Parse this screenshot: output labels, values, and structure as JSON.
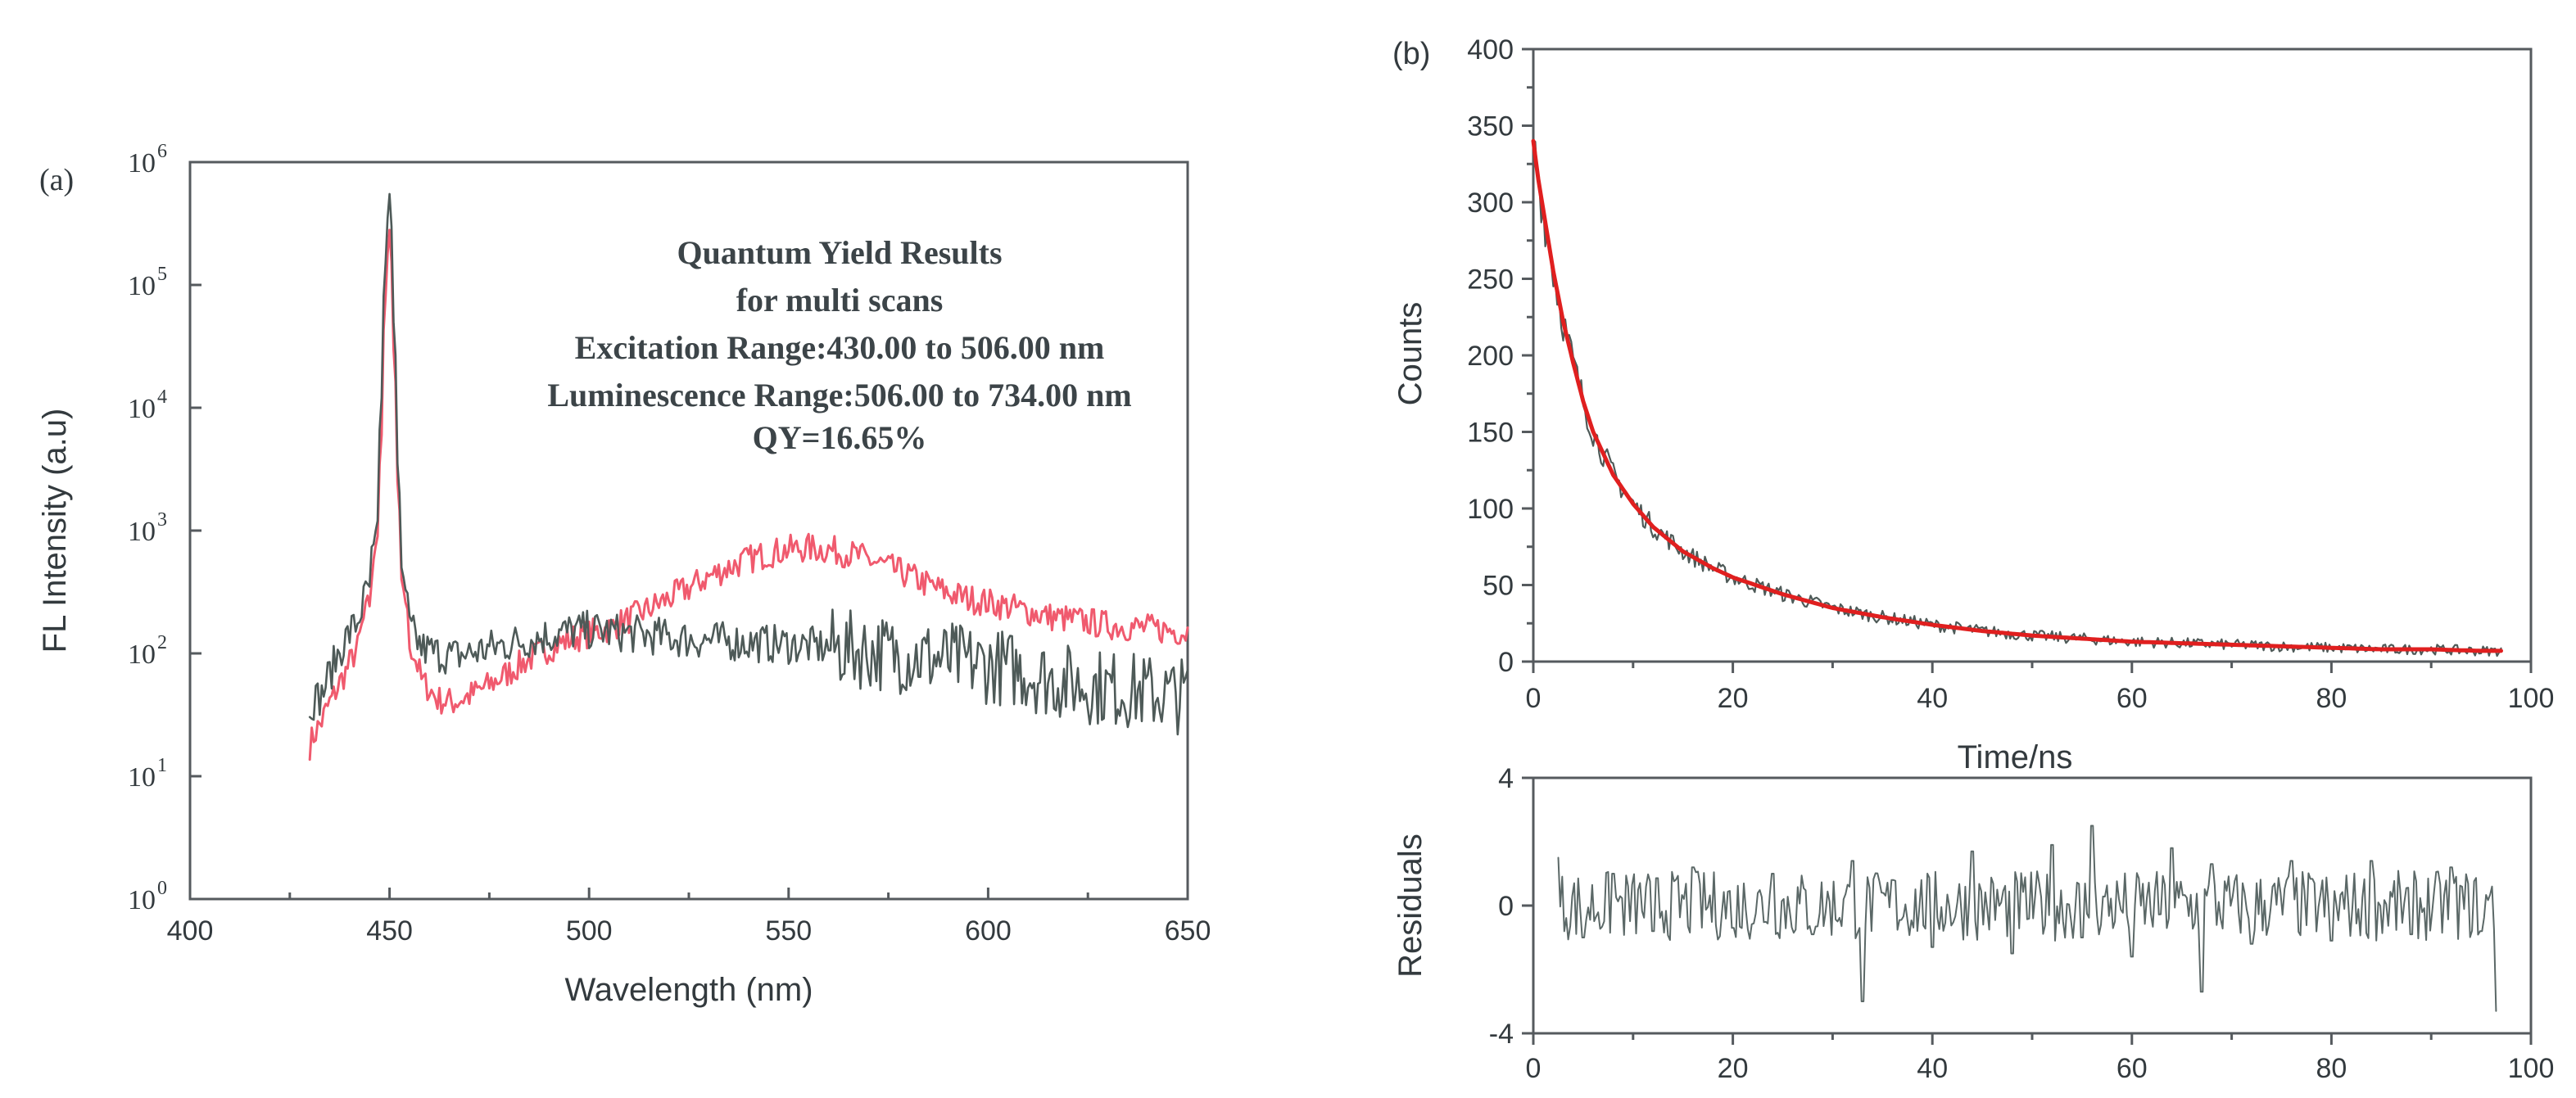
{
  "colors": {
    "sample_trace": "#f05a6e",
    "reference_trace": "#4e5a58",
    "fit_curve": "#e01f1f",
    "decay_data": "#4e5a58",
    "residual_trace": "#5b6867",
    "axis": "#555a5e",
    "text": "#333a3e"
  },
  "chart_data": [
    {
      "panel_label": "(a)",
      "type": "line",
      "title": "",
      "xlabel": "Wavelength (nm)",
      "ylabel": "FL Intensity (a.u)",
      "xlim": [
        400,
        650
      ],
      "ylim": [
        1,
        1000000
      ],
      "yscale": "log",
      "x_ticks": [
        "400",
        "450",
        "500",
        "550",
        "600",
        "650"
      ],
      "y_ticks": [
        {
          "base": "10",
          "exp": "0"
        },
        {
          "base": "10",
          "exp": "1"
        },
        {
          "base": "10",
          "exp": "2"
        },
        {
          "base": "10",
          "exp": "3"
        },
        {
          "base": "10",
          "exp": "4"
        },
        {
          "base": "10",
          "exp": "5"
        },
        {
          "base": "10",
          "exp": "6"
        }
      ],
      "annotation": [
        "Quantum Yield Results",
        "for multi scans",
        "Excitation Range:430.00 to 506.00 nm",
        "Luminescence Range:506.00 to 734.00 nm",
        "QY=16.65%"
      ],
      "series": [
        {
          "name": "sample",
          "color": "#f05a6e",
          "x": [
            430,
            433,
            436,
            439,
            442,
            445,
            447,
            448,
            449,
            450,
            451,
            452,
            453,
            455,
            458,
            462,
            466,
            470,
            475,
            480,
            485,
            490,
            495,
            500,
            505,
            510,
            515,
            520,
            525,
            530,
            535,
            540,
            545,
            550,
            555,
            560,
            565,
            570,
            575,
            580,
            585,
            590,
            595,
            600,
            605,
            610,
            615,
            620,
            625,
            630,
            635,
            640,
            645,
            650
          ],
          "y": [
            18,
            28,
            45,
            70,
            110,
            260,
            900,
            6000,
            80000,
            280000,
            30000,
            2500,
            400,
            120,
            60,
            42,
            40,
            45,
            55,
            70,
            90,
            110,
            130,
            145,
            160,
            190,
            230,
            280,
            340,
            420,
            500,
            580,
            650,
            700,
            720,
            700,
            650,
            580,
            500,
            430,
            360,
            310,
            280,
            260,
            240,
            220,
            200,
            190,
            180,
            170,
            165,
            160,
            155,
            150
          ]
        },
        {
          "name": "reference",
          "color": "#4e5a58",
          "x": [
            430,
            433,
            436,
            439,
            442,
            445,
            447,
            448,
            449,
            450,
            451,
            452,
            453,
            455,
            458,
            462,
            466,
            470,
            475,
            480,
            485,
            490,
            495,
            500,
            505,
            510,
            515,
            520,
            525,
            530,
            535,
            540,
            545,
            550,
            555,
            560,
            565,
            570,
            575,
            580,
            585,
            590,
            595,
            600,
            605,
            610,
            615,
            620,
            625,
            630,
            635,
            640,
            645,
            650
          ],
          "y": [
            40,
            45,
            80,
            130,
            180,
            350,
            1200,
            12000,
            150000,
            550000,
            50000,
            3500,
            500,
            160,
            110,
            100,
            95,
            100,
            110,
            120,
            130,
            140,
            150,
            155,
            150,
            145,
            140,
            135,
            130,
            128,
            125,
            122,
            120,
            118,
            115,
            112,
            108,
            104,
            100,
            96,
            92,
            88,
            84,
            80,
            76,
            70,
            62,
            58,
            55,
            52,
            50,
            48,
            46,
            45
          ]
        }
      ]
    },
    {
      "panel_label": "(b)",
      "type": "line",
      "title": "",
      "xlabel": "Time/ns",
      "ylabel": "Counts",
      "xlim": [
        0,
        100
      ],
      "ylim": [
        0,
        400
      ],
      "x_ticks": [
        "0",
        "20",
        "40",
        "60",
        "80",
        "100"
      ],
      "y_ticks": [
        "0",
        "50",
        "100",
        "150",
        "200",
        "250",
        "300",
        "350",
        "400"
      ],
      "series": [
        {
          "name": "decay data",
          "color": "#4e5a58",
          "x": [
            0,
            0.5,
            1,
            2,
            3,
            4,
            5,
            6,
            8,
            10,
            12,
            15,
            18,
            20,
            25,
            30,
            35,
            40,
            45,
            50,
            55,
            60,
            65,
            70,
            75,
            80,
            85,
            90,
            95,
            97
          ],
          "y": [
            340,
            315,
            295,
            255,
            222,
            195,
            170,
            150,
            122,
            103,
            88,
            72,
            61,
            55,
            44,
            35,
            29,
            24,
            20,
            17,
            15,
            13,
            12,
            11,
            10,
            9,
            8,
            8,
            7,
            7
          ]
        },
        {
          "name": "fit",
          "color": "#e01f1f",
          "x": [
            0,
            0.5,
            1,
            2,
            3,
            4,
            5,
            6,
            8,
            10,
            12,
            15,
            18,
            20,
            25,
            30,
            35,
            40,
            45,
            50,
            55,
            60,
            65,
            70,
            75,
            80,
            85,
            90,
            95,
            97
          ],
          "y": [
            340,
            315,
            295,
            255,
            222,
            195,
            170,
            150,
            122,
            103,
            88,
            72,
            61,
            55,
            44,
            35,
            29,
            24,
            20,
            17,
            15,
            13,
            12,
            11,
            10,
            9,
            8,
            8,
            7,
            7
          ]
        }
      ]
    },
    {
      "panel_label": "",
      "type": "line",
      "title": "",
      "xlabel": "",
      "ylabel": "Residuals",
      "xlim": [
        0,
        100
      ],
      "ylim": [
        -4,
        4
      ],
      "x_ticks": [
        "0",
        "20",
        "40",
        "60",
        "80",
        "100"
      ],
      "y_ticks": [
        "-4",
        "0",
        "4"
      ],
      "series": [
        {
          "name": "residuals",
          "color": "#5b6867",
          "x": [
            2.5,
            5,
            8,
            12,
            16,
            20,
            24,
            28,
            32,
            33,
            36,
            40,
            44,
            48,
            52,
            55,
            56,
            60,
            64,
            67,
            68,
            72,
            76,
            80,
            84,
            88,
            92,
            95,
            96.5
          ],
          "y": [
            1.5,
            -1.0,
            1.0,
            -0.8,
            1.2,
            -0.7,
            1.0,
            -0.9,
            1.4,
            -3.0,
            0.8,
            -1.3,
            1.7,
            -1.5,
            1.9,
            -1.0,
            2.5,
            -1.6,
            1.8,
            -2.7,
            1.3,
            -1.2,
            1.4,
            -1.1,
            1.4,
            -0.9,
            1.2,
            -0.8,
            -3.3
          ]
        }
      ]
    }
  ]
}
